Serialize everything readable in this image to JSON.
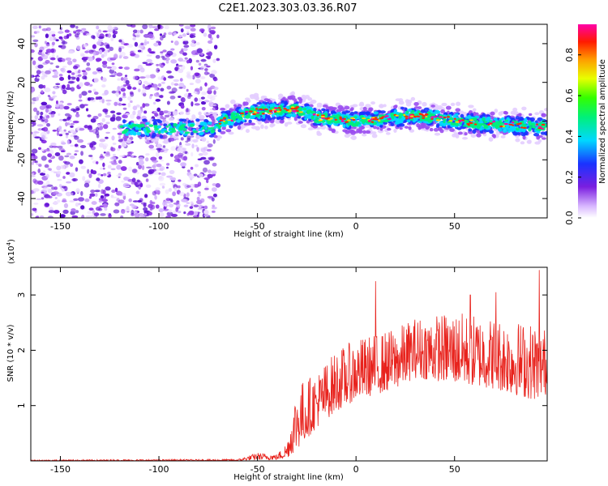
{
  "title": "C2E1.2023.303.03.36.R07",
  "chart_data": [
    {
      "type": "heatmap",
      "xlabel": "Height of straight line (km)",
      "ylabel": "Frequency (Hz)",
      "xlim": [
        -165,
        97
      ],
      "ylim": [
        -50,
        50
      ],
      "x_ticks": [
        -150,
        -100,
        -50,
        0,
        50
      ],
      "y_ticks": [
        -40,
        -20,
        0,
        20,
        40
      ],
      "grid": false,
      "colorbar": {
        "label": "Normalized spectral amplitude",
        "range": [
          0.0,
          0.95
        ],
        "ticks": [
          0.0,
          0.2,
          0.4,
          0.6,
          0.8
        ],
        "colormap": "rainbow (white → violet → blue → cyan → green → yellow → orange → red → magenta)"
      },
      "features": {
        "noise_region_x": [
          -165,
          -70
        ],
        "signal_band_center_hz": [
          {
            "x": -120,
            "y": -4
          },
          {
            "x": -90,
            "y": -4
          },
          {
            "x": -72,
            "y": -4
          },
          {
            "x": -68,
            "y": 0
          },
          {
            "x": -50,
            "y": 5
          },
          {
            "x": -30,
            "y": 6
          },
          {
            "x": -20,
            "y": 2
          },
          {
            "x": 0,
            "y": 0
          },
          {
            "x": 30,
            "y": 3
          },
          {
            "x": 60,
            "y": -1
          },
          {
            "x": 97,
            "y": -3
          }
        ],
        "colors": {
          "noise": "#7a1fe0",
          "signal_core": "#ff2a00",
          "signal_edge": "#00e0ff"
        }
      }
    },
    {
      "type": "line",
      "xlabel": "Height of straight line (km)",
      "ylabel": "SNR (10 * v/v)",
      "y_scale_label": "(x10",
      "y_scale_exp": "4",
      "y_scale_close": ")",
      "xlim": [
        -165,
        97
      ],
      "ylim": [
        0,
        3.5
      ],
      "x_ticks": [
        -150,
        -100,
        -50,
        0,
        50
      ],
      "y_ticks": [
        1,
        2,
        3
      ],
      "grid": false,
      "series_color": "#e8231d",
      "envelope": [
        {
          "x": -165,
          "low": 0.0,
          "high": 0.02
        },
        {
          "x": -60,
          "low": 0.0,
          "high": 0.03
        },
        {
          "x": -50,
          "low": 0.02,
          "high": 0.15
        },
        {
          "x": -40,
          "low": 0.02,
          "high": 0.12
        },
        {
          "x": -35,
          "low": 0.05,
          "high": 0.35
        },
        {
          "x": -30,
          "low": 0.2,
          "high": 1.4
        },
        {
          "x": -20,
          "low": 0.6,
          "high": 1.6
        },
        {
          "x": -10,
          "low": 0.9,
          "high": 2.0
        },
        {
          "x": 0,
          "low": 1.1,
          "high": 2.2
        },
        {
          "x": 10,
          "low": 1.2,
          "high": 2.3
        },
        {
          "x": 20,
          "low": 1.3,
          "high": 2.4
        },
        {
          "x": 30,
          "low": 1.5,
          "high": 2.6
        },
        {
          "x": 50,
          "low": 1.4,
          "high": 2.7
        },
        {
          "x": 70,
          "low": 1.3,
          "high": 2.6
        },
        {
          "x": 90,
          "low": 1.1,
          "high": 2.5
        },
        {
          "x": 97,
          "low": 1.2,
          "high": 2.4
        }
      ],
      "peaks": [
        {
          "x": 10,
          "y": 3.25
        },
        {
          "x": 93,
          "y": 3.45
        },
        {
          "x": 71,
          "y": 3.05
        },
        {
          "x": 58,
          "y": 3.0
        }
      ]
    }
  ]
}
